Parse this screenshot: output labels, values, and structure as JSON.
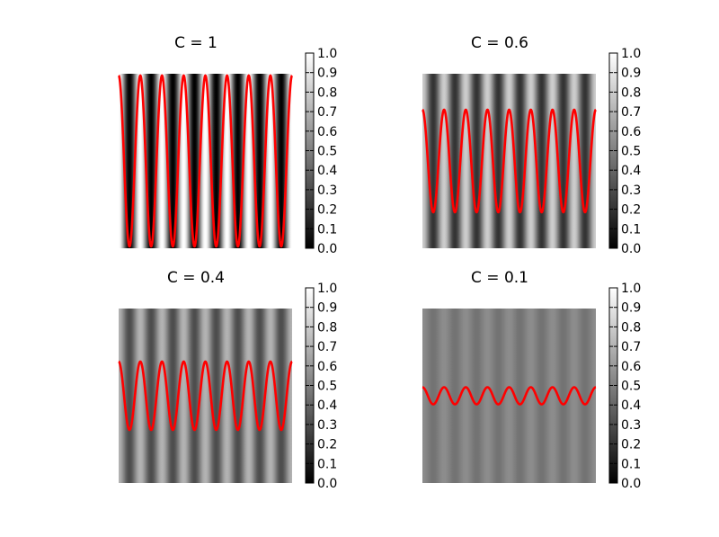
{
  "chart_data": [
    {
      "type": "heatmap",
      "title": "C = 1",
      "contrast": 1,
      "mean": 0.5,
      "cycles": 8,
      "series": [
        {
          "values_description_note": "",
          "amplitude": 0.5
        }
      ],
      "colorbar": {
        "min": 0.0,
        "max": 1.0,
        "ticks": [
          "0.0",
          "0.1",
          "0.2",
          "0.3",
          "0.4",
          "0.5",
          "0.6",
          "0.7",
          "0.8",
          "0.9",
          "1.0"
        ],
        "colormap": "gray"
      },
      "line_color": "#ff0000"
    },
    {
      "type": "heatmap",
      "title": "C = 0.6",
      "contrast": 0.6,
      "mean": 0.5,
      "cycles": 8,
      "series": [
        {
          "values_description_note": "",
          "amplitude": 0.3
        }
      ],
      "colorbar": {
        "min": 0.0,
        "max": 1.0,
        "ticks": [
          "0.0",
          "0.1",
          "0.2",
          "0.3",
          "0.4",
          "0.5",
          "0.6",
          "0.7",
          "0.8",
          "0.9",
          "1.0"
        ],
        "colormap": "gray"
      },
      "line_color": "#ff0000"
    },
    {
      "type": "heatmap",
      "title": "C = 0.4",
      "contrast": 0.4,
      "mean": 0.5,
      "cycles": 8,
      "series": [
        {
          "values_description_note": "",
          "amplitude": 0.2
        }
      ],
      "colorbar": {
        "min": 0.0,
        "max": 1.0,
        "ticks": [
          "0.0",
          "0.1",
          "0.2",
          "0.3",
          "0.4",
          "0.5",
          "0.6",
          "0.7",
          "0.8",
          "0.9",
          "1.0"
        ],
        "colormap": "gray"
      },
      "line_color": "#ff0000"
    },
    {
      "type": "heatmap",
      "title": "C = 0.1",
      "contrast": 0.1,
      "mean": 0.5,
      "cycles": 8,
      "series": [
        {
          "values_description_note": "",
          "amplitude": 0.05
        }
      ],
      "colorbar": {
        "min": 0.0,
        "max": 1.0,
        "ticks": [
          "0.0",
          "0.1",
          "0.2",
          "0.3",
          "0.4",
          "0.5",
          "0.6",
          "0.7",
          "0.8",
          "0.9",
          "1.0"
        ],
        "colormap": "gray"
      },
      "line_color": "#ff0000"
    }
  ]
}
